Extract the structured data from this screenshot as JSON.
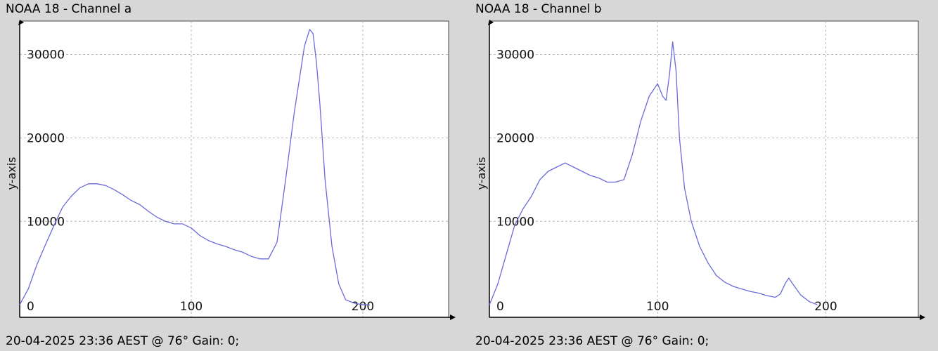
{
  "chart_data": [
    {
      "type": "line",
      "title": "NOAA 18 - Channel a",
      "footer": "20-04-2025 23:36 AEST @ 76° Gain: 0;",
      "ylabel": "y-axis",
      "xlabel": "",
      "xlim": [
        0,
        250
      ],
      "ylim": [
        -1500,
        34000
      ],
      "x_ticks": [
        0,
        100,
        200
      ],
      "y_ticks": [
        10000,
        20000,
        30000
      ],
      "grid": true,
      "legend": "none",
      "line_color": "#6a6ad8",
      "series": [
        {
          "x": [
            0,
            5,
            10,
            15,
            20,
            25,
            30,
            35,
            40,
            45,
            50,
            55,
            60,
            65,
            70,
            75,
            80,
            85,
            90,
            95,
            100,
            105,
            110,
            115,
            120,
            125,
            130,
            135,
            140,
            145,
            150,
            155,
            160,
            163,
            166,
            169,
            171,
            173,
            175,
            178,
            182,
            186,
            190,
            195,
            200,
            204
          ],
          "y": [
            0,
            1900,
            4800,
            7200,
            9500,
            11700,
            13000,
            14000,
            14500,
            14500,
            14300,
            13800,
            13200,
            12500,
            12000,
            11200,
            10500,
            10000,
            9700,
            9700,
            9200,
            8300,
            7700,
            7300,
            7000,
            6600,
            6300,
            5800,
            5500,
            5500,
            7500,
            15000,
            23000,
            27000,
            31000,
            33000,
            32500,
            29000,
            24000,
            15000,
            7000,
            2500,
            600,
            200,
            0,
            0
          ]
        }
      ]
    },
    {
      "type": "line",
      "title": "NOAA 18 - Channel b",
      "footer": "20-04-2025 23:36 AEST @ 76° Gain: 0;",
      "ylabel": "y-axis",
      "xlabel": "",
      "xlim": [
        0,
        255
      ],
      "ylim": [
        -1500,
        34000
      ],
      "x_ticks": [
        0,
        100,
        200
      ],
      "y_ticks": [
        10000,
        20000,
        30000
      ],
      "grid": true,
      "legend": "none",
      "line_color": "#6a6ad8",
      "series": [
        {
          "x": [
            0,
            5,
            10,
            15,
            20,
            25,
            30,
            35,
            40,
            45,
            50,
            55,
            60,
            65,
            70,
            75,
            80,
            85,
            90,
            95,
            100,
            103,
            105,
            107,
            109,
            111,
            113,
            116,
            120,
            125,
            130,
            135,
            140,
            145,
            150,
            155,
            160,
            165,
            170,
            173,
            176,
            178,
            180,
            185,
            190,
            195
          ],
          "y": [
            0,
            2500,
            6000,
            9500,
            11500,
            13000,
            15000,
            16000,
            16500,
            17000,
            16500,
            16000,
            15500,
            15200,
            14700,
            14700,
            15000,
            18000,
            22000,
            25000,
            26500,
            25000,
            24500,
            27500,
            31500,
            28000,
            20000,
            14000,
            10000,
            7000,
            5000,
            3500,
            2700,
            2200,
            1900,
            1600,
            1400,
            1100,
            900,
            1300,
            2600,
            3200,
            2600,
            1200,
            400,
            0
          ]
        }
      ]
    }
  ]
}
